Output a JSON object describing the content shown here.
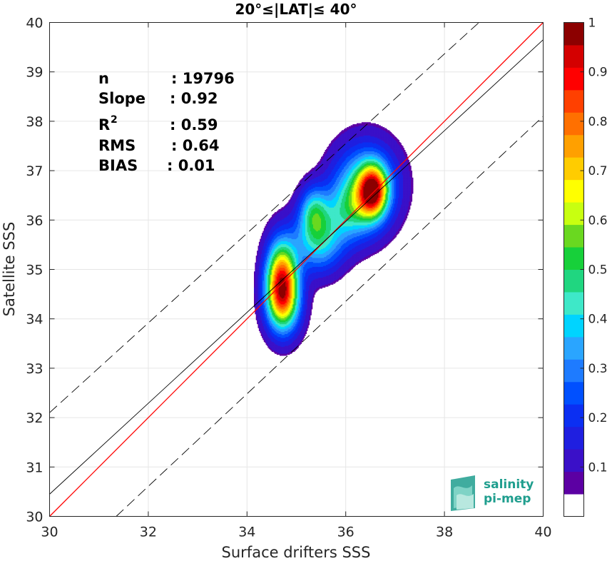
{
  "chart_data": {
    "type": "heatmap",
    "title": "20°≤|LAT|≤ 40°",
    "xlabel": "Surface drifters SSS",
    "ylabel": "Satellite SSS",
    "xlim": [
      30,
      40
    ],
    "ylim": [
      30,
      40
    ],
    "xticks": [
      "30",
      "32",
      "34",
      "36",
      "38",
      "40"
    ],
    "yticks": [
      "30",
      "31",
      "32",
      "33",
      "34",
      "35",
      "36",
      "37",
      "38",
      "39",
      "40"
    ],
    "grid": true,
    "stats": [
      {
        "label": "n",
        "value": ": 19796"
      },
      {
        "label": "Slope",
        "value": ": 0.92"
      },
      {
        "label": "R",
        "sup": "2",
        "value": ": 0.59"
      },
      {
        "label": "RMS",
        "value": ": 0.64"
      },
      {
        "label": "BIAS",
        "value": ": 0.01"
      }
    ],
    "lines": [
      {
        "kind": "one-to-one",
        "color": "#ff0000",
        "points": [
          [
            30,
            30
          ],
          [
            40,
            40
          ]
        ]
      },
      {
        "kind": "regression",
        "color": "#000000",
        "points": [
          [
            30,
            30.45
          ],
          [
            40,
            39.65
          ]
        ]
      },
      {
        "kind": "envelope-upper",
        "color": "#000000",
        "dash": true,
        "points": [
          [
            30,
            32.1
          ],
          [
            38.7,
            40
          ]
        ]
      },
      {
        "kind": "envelope-lower",
        "color": "#000000",
        "dash": true,
        "points": [
          [
            31.35,
            30
          ],
          [
            40,
            38.1
          ]
        ]
      }
    ],
    "density_blobs": [
      {
        "cx": 34.7,
        "cy": 34.8,
        "sx": 0.22,
        "sy": 0.55,
        "amp": 0.78
      },
      {
        "cx": 34.75,
        "cy": 34.3,
        "sx": 0.25,
        "sy": 0.45,
        "amp": 0.35
      },
      {
        "cx": 35.45,
        "cy": 35.6,
        "sx": 0.35,
        "sy": 0.45,
        "amp": 0.38
      },
      {
        "cx": 35.35,
        "cy": 36.2,
        "sx": 0.2,
        "sy": 0.35,
        "amp": 0.3
      },
      {
        "cx": 36.55,
        "cy": 36.6,
        "sx": 0.2,
        "sy": 0.35,
        "amp": 0.72
      },
      {
        "cx": 36.4,
        "cy": 36.7,
        "sx": 0.45,
        "sy": 0.6,
        "amp": 0.38
      },
      {
        "cx": 36.1,
        "cy": 36.2,
        "sx": 0.35,
        "sy": 0.45,
        "amp": 0.25
      }
    ],
    "contour_levels": [
      0.04,
      0.1,
      0.15,
      0.2,
      0.25,
      0.3,
      0.35,
      0.4,
      0.45,
      0.5,
      0.55,
      0.6,
      0.65,
      0.7,
      0.75,
      0.8,
      0.85,
      0.9
    ],
    "colorbar": {
      "range": [
        0,
        1
      ],
      "ticks": [
        "0.1",
        "0.2",
        "0.3",
        "0.4",
        "0.5",
        "0.6",
        "0.7",
        "0.8",
        "0.9",
        "1"
      ],
      "colors": [
        "#ffffff",
        "#5c00a3",
        "#3a10c8",
        "#1f1fe0",
        "#0b2ff2",
        "#0050ff",
        "#1e7bff",
        "#2aa5ff",
        "#00d4ff",
        "#3ee8c8",
        "#20d680",
        "#17d03a",
        "#6ad820",
        "#c8ff10",
        "#ffff00",
        "#ffcc00",
        "#ffa000",
        "#ff7000",
        "#ff4000",
        "#ff0000",
        "#d40000",
        "#8c0000"
      ]
    }
  },
  "logo": {
    "line1": "salinity",
    "line2": "pi-mep"
  }
}
